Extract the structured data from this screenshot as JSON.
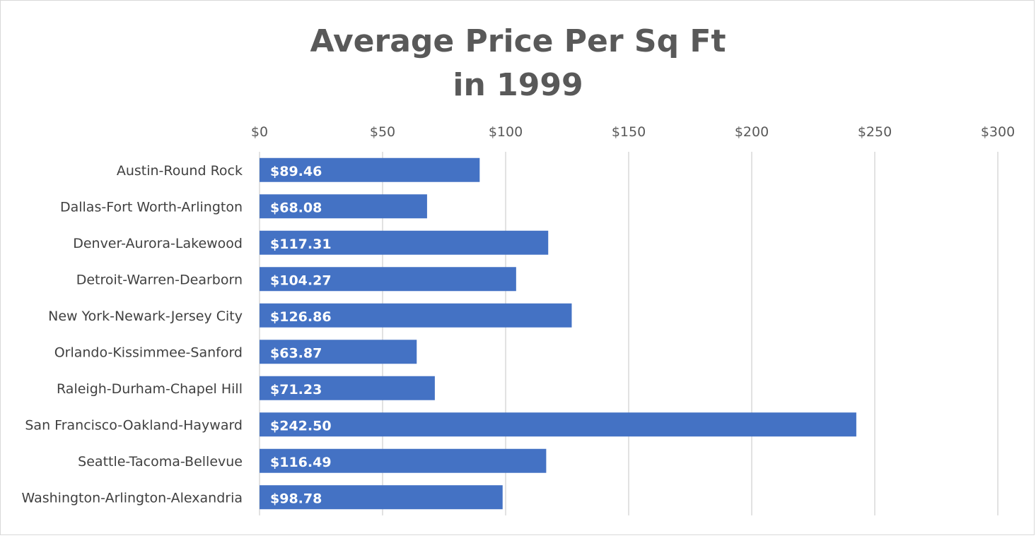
{
  "chart_data": {
    "type": "bar",
    "orientation": "horizontal",
    "title": [
      "Average Price Per Sq Ft",
      "in 1999"
    ],
    "categories": [
      "Austin-Round Rock",
      "Dallas-Fort Worth-Arlington",
      "Denver-Aurora-Lakewood",
      "Detroit-Warren-Dearborn",
      "New York-Newark-Jersey City",
      "Orlando-Kissimmee-Sanford",
      "Raleigh-Durham-Chapel Hill",
      "San Francisco-Oakland-Hayward",
      "Seattle-Tacoma-Bellevue",
      "Washington-Arlington-Alexandria"
    ],
    "values": [
      89.46,
      68.08,
      117.31,
      104.27,
      126.86,
      63.87,
      71.23,
      242.5,
      116.49,
      98.78
    ],
    "data_labels": [
      "$89.46",
      "$68.08",
      "$117.31",
      "$104.27",
      "$126.86",
      "$63.87",
      "$71.23",
      "$242.50",
      "$116.49",
      "$98.78"
    ],
    "xlim": [
      0,
      300
    ],
    "x_ticks": [
      0,
      50,
      100,
      150,
      200,
      250,
      300
    ],
    "x_tick_labels": [
      "$0",
      "$50",
      "$100",
      "$150",
      "$200",
      "$250",
      "$300"
    ],
    "x_axis_position": "top",
    "grid": true,
    "legend": false,
    "xlabel": "",
    "ylabel": "",
    "bar_color": "#4472c4",
    "grid_color": "#d9d9d9"
  }
}
